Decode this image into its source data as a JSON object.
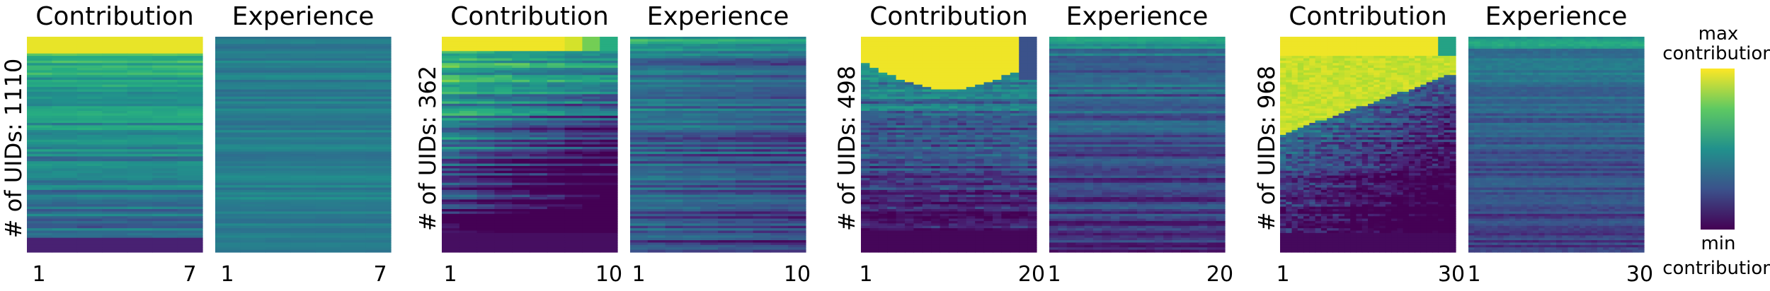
{
  "colorbar": {
    "colormap": "viridis",
    "top_label_line1": "max",
    "top_label_line2": "contribution",
    "bottom_label_line1": "min",
    "bottom_label_line2": "contribution",
    "colors": [
      "#440154",
      "#3b528b",
      "#21918c",
      "#5ec962",
      "#fde725"
    ]
  },
  "chart_data": [
    {
      "type": "heatmap",
      "group": 1,
      "ylabel": "# of UIDs: 1110",
      "rows": 1110,
      "panels": [
        {
          "title": "Contribution",
          "x_ticks": [
            "1",
            "7"
          ],
          "columns": 7
        },
        {
          "title": "Experience",
          "x_ticks": [
            "1",
            "7"
          ],
          "columns": 7
        }
      ]
    },
    {
      "type": "heatmap",
      "group": 2,
      "ylabel": "# of UIDs: 362",
      "rows": 362,
      "panels": [
        {
          "title": "Contribution",
          "x_ticks": [
            "1",
            "10"
          ],
          "columns": 10
        },
        {
          "title": "Experience",
          "x_ticks": [
            "1",
            "10"
          ],
          "columns": 10
        }
      ]
    },
    {
      "type": "heatmap",
      "group": 3,
      "ylabel": "# of UIDs: 498",
      "rows": 498,
      "panels": [
        {
          "title": "Contribution",
          "x_ticks": [
            "1",
            "20"
          ],
          "columns": 20
        },
        {
          "title": "Experience",
          "x_ticks": [
            "1",
            "20"
          ],
          "columns": 20
        }
      ]
    },
    {
      "type": "heatmap",
      "group": 4,
      "ylabel": "# of UIDs: 968",
      "rows": 968,
      "panels": [
        {
          "title": "Contribution",
          "x_ticks": [
            "1",
            "30"
          ],
          "columns": 30
        },
        {
          "title": "Experience",
          "x_ticks": [
            "1",
            "30"
          ],
          "columns": 30
        }
      ]
    }
  ]
}
